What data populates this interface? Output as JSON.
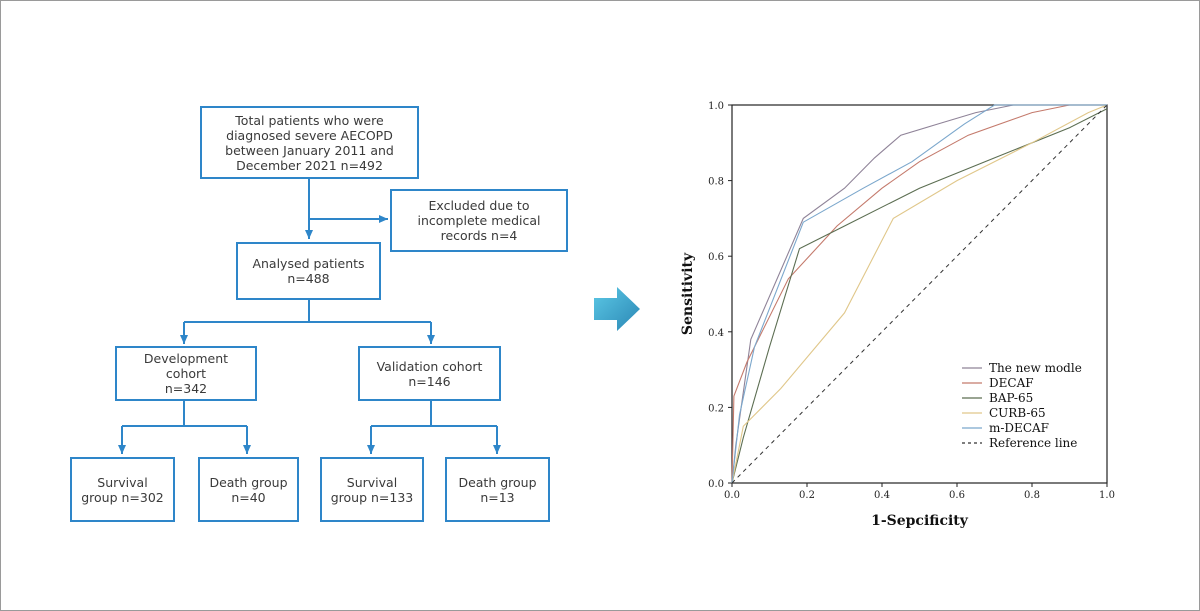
{
  "flowchart": {
    "total": "Total patients who were\ndiagnosed severe AECOPD\nbetween January 2011 and\nDecember 2021    n=492",
    "excluded": "Excluded due to\nincomplete medical\nrecords    n=4",
    "analysed": "Analysed patients\nn=488",
    "development": "Development\ncohort\nn=342",
    "validation": "Validation cohort\nn=146",
    "dev_survival": "Survival\ngroup n=302",
    "dev_death": "Death group\nn=40",
    "val_survival": "Survival\ngroup n=133",
    "val_death": "Death group\nn=13"
  },
  "colors": {
    "flow_line": "#2e86c9",
    "arrow_fill": "#33a7cf"
  },
  "chart_data": {
    "type": "line",
    "xlabel": "1-Sepcificity",
    "ylabel": "Sensitivity",
    "xlim": [
      0,
      1
    ],
    "ylim": [
      0,
      1
    ],
    "xticks": [
      "0.0",
      "0.2",
      "0.4",
      "0.6",
      "0.8",
      "1.0"
    ],
    "yticks": [
      "0.0",
      "0.2",
      "0.4",
      "0.6",
      "0.8",
      "1.0"
    ],
    "grid": false,
    "legend_position": "bottom-right",
    "series": [
      {
        "name": "The new modle",
        "color": "#8f8398",
        "dash": false,
        "x": [
          0,
          0.01,
          0.05,
          0.19,
          0.3,
          0.38,
          0.45,
          0.55,
          0.65,
          0.75,
          0.85,
          1.0
        ],
        "y": [
          0,
          0.1,
          0.38,
          0.7,
          0.78,
          0.86,
          0.92,
          0.95,
          0.98,
          1.0,
          1.0,
          1.0
        ]
      },
      {
        "name": "DECAF",
        "color": "#c47a6c",
        "dash": false,
        "x": [
          0,
          0.005,
          0.04,
          0.15,
          0.28,
          0.4,
          0.5,
          0.63,
          0.8,
          0.9,
          1.0
        ],
        "y": [
          0,
          0.23,
          0.32,
          0.54,
          0.68,
          0.78,
          0.85,
          0.92,
          0.98,
          1.0,
          1.0
        ]
      },
      {
        "name": "BAP-65",
        "color": "#5c6e52",
        "dash": false,
        "x": [
          0,
          0.03,
          0.1,
          0.18,
          0.3,
          0.5,
          0.7,
          0.9,
          1.0
        ],
        "y": [
          0,
          0.12,
          0.36,
          0.62,
          0.68,
          0.78,
          0.86,
          0.94,
          0.99
        ]
      },
      {
        "name": "CURB-65",
        "color": "#e0c78a",
        "dash": false,
        "x": [
          0,
          0.03,
          0.13,
          0.3,
          0.43,
          0.6,
          0.8,
          0.95,
          1.0
        ],
        "y": [
          0,
          0.15,
          0.25,
          0.45,
          0.7,
          0.8,
          0.9,
          0.98,
          1.0
        ]
      },
      {
        "name": "m-DECAF",
        "color": "#7ba7cc",
        "dash": false,
        "x": [
          0,
          0.02,
          0.06,
          0.19,
          0.35,
          0.48,
          0.62,
          0.7,
          0.8,
          1.0
        ],
        "y": [
          0,
          0.18,
          0.36,
          0.69,
          0.78,
          0.85,
          0.95,
          1.0,
          1.0,
          1.0
        ]
      },
      {
        "name": "Reference line",
        "color": "#333333",
        "dash": true,
        "x": [
          0,
          1
        ],
        "y": [
          0,
          1
        ]
      }
    ]
  }
}
